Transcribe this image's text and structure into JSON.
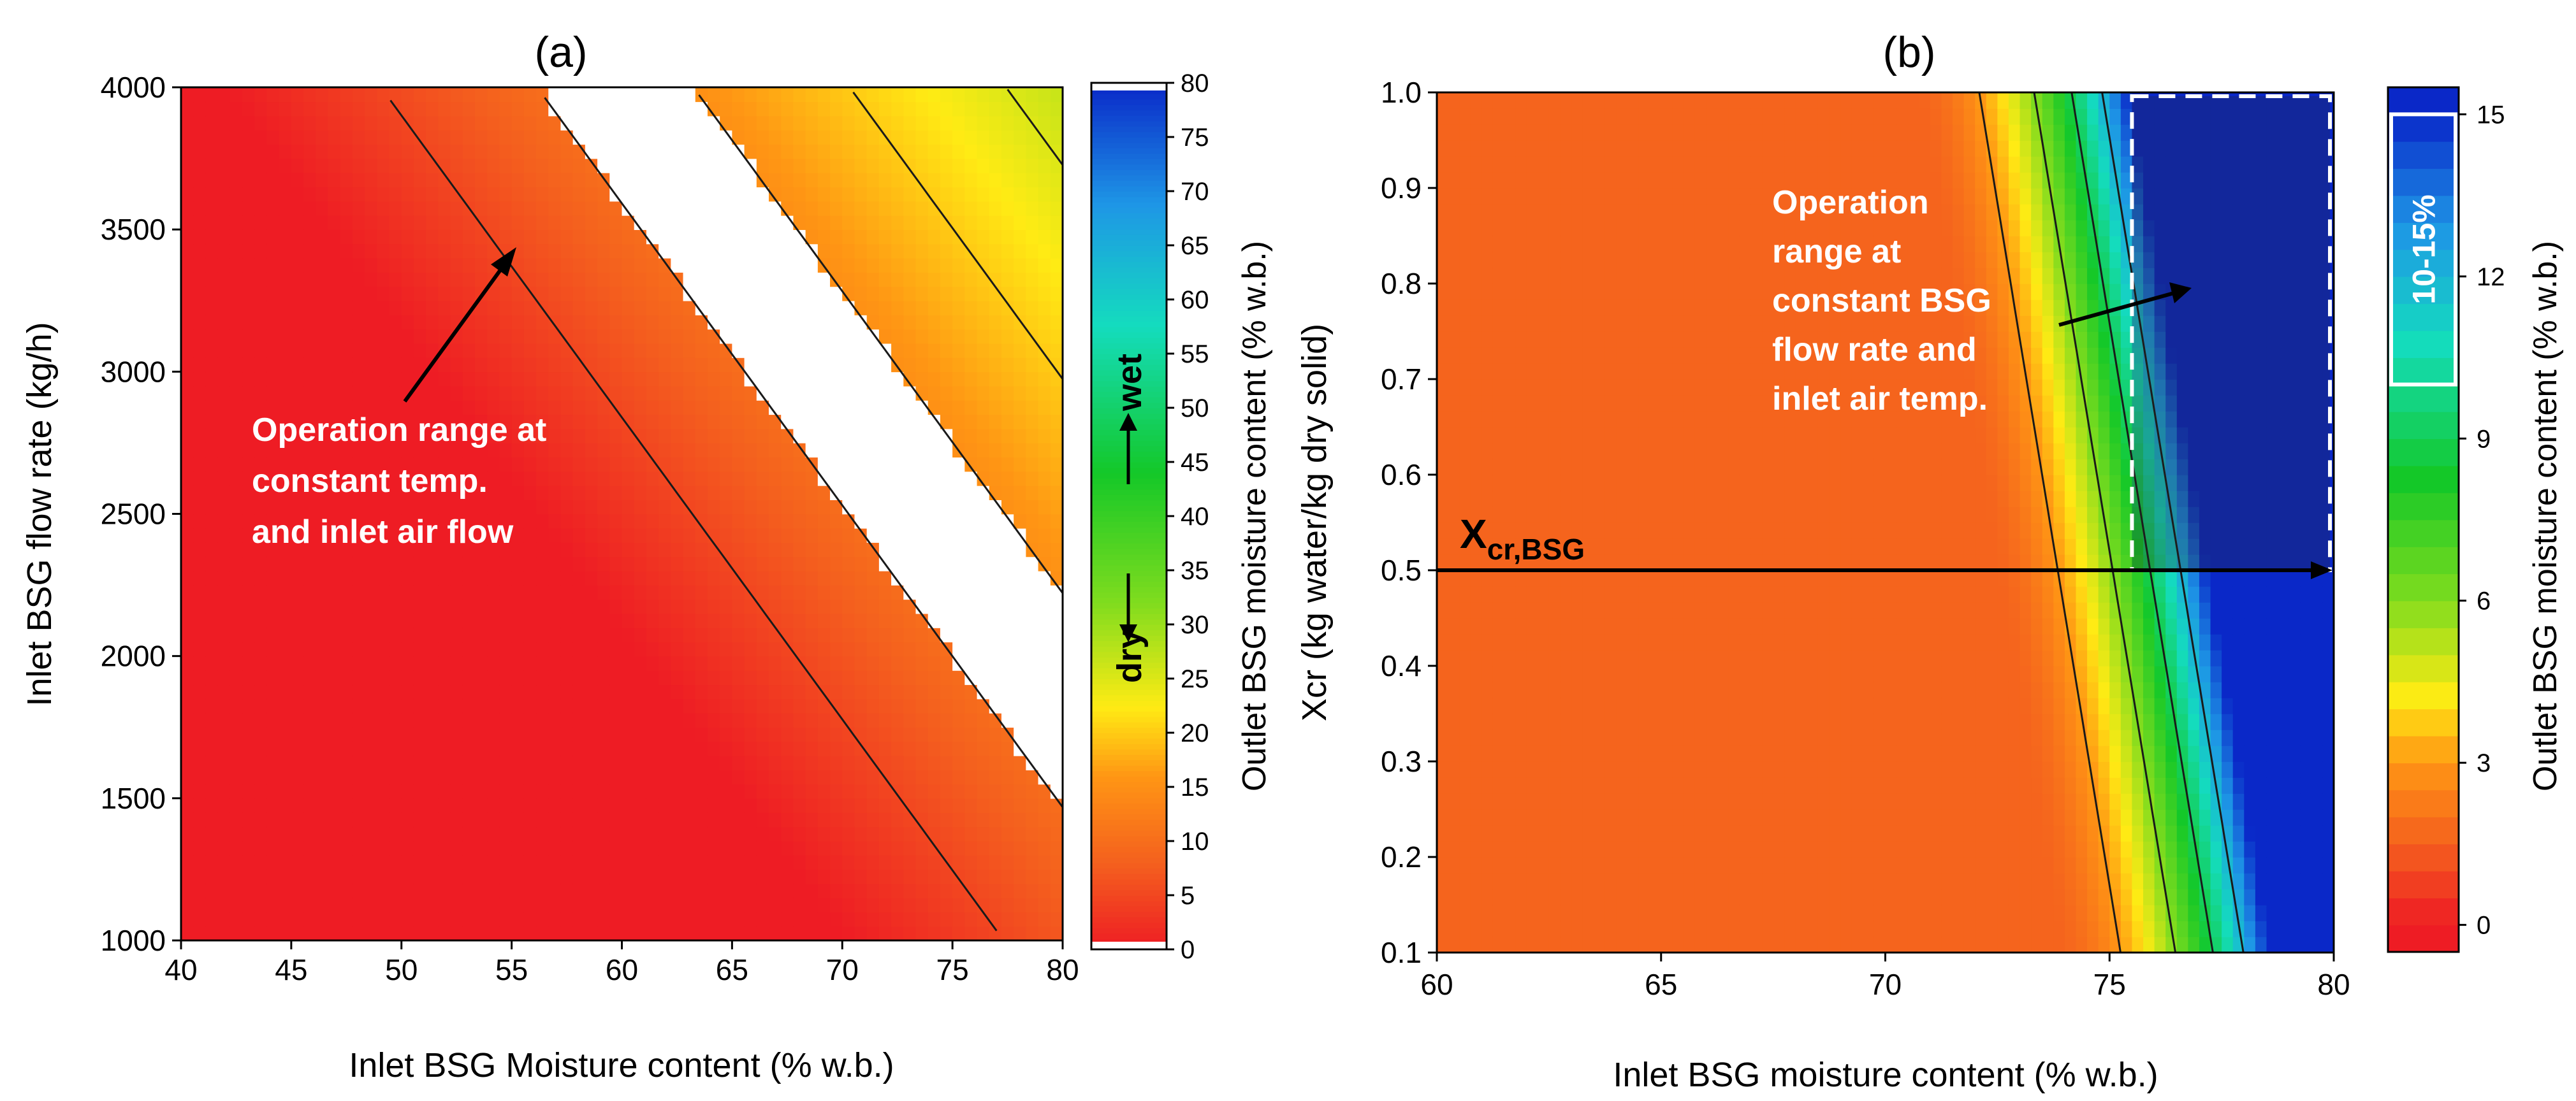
{
  "chart_data": [
    {
      "type": "heatmap",
      "panel_label": "(a)",
      "xlabel": "Inlet BSG Moisture content (% w.b.)",
      "ylabel": "Inlet BSG flow rate (kg/h)",
      "xlim": [
        40,
        80
      ],
      "ylim": [
        1000,
        4000
      ],
      "x_ticks": [
        "40",
        "45",
        "50",
        "55",
        "60",
        "65",
        "70",
        "75",
        "80"
      ],
      "y_ticks": [
        "1000",
        "1500",
        "2000",
        "2500",
        "3000",
        "3500",
        "4000"
      ],
      "colorbar": {
        "label": "Outlet BSG moisture content (% w.b.)",
        "range": [
          0,
          80
        ],
        "ticks": [
          "0",
          "5",
          "10",
          "15",
          "20",
          "25",
          "30",
          "35",
          "40",
          "45",
          "50",
          "55",
          "60",
          "65",
          "70",
          "75",
          "80"
        ],
        "dry_label": "dry",
        "wet_label": "wet"
      },
      "model": "outlet moisture rises with inlet moisture and flow rate; 10-15% band left uncolored (white)",
      "operation_band_percent": [
        10,
        15
      ],
      "contour_levels": [
        5,
        10,
        15,
        20,
        25,
        30,
        35,
        40,
        45,
        50,
        55,
        60,
        65,
        70
      ],
      "annotation": {
        "lines": [
          "Operation range at",
          "constant temp.",
          "and inlet air flow"
        ],
        "arrow_to": [
          55,
          3450
        ]
      }
    },
    {
      "type": "heatmap",
      "panel_label": "(b)",
      "xlabel": "Inlet BSG moisture content (% w.b.)",
      "ylabel": "Xcr (kg water/kg dry solid)",
      "xlim": [
        60,
        80
      ],
      "ylim": [
        0.1,
        1.0
      ],
      "x_ticks": [
        "60",
        "65",
        "70",
        "75",
        "80"
      ],
      "y_ticks": [
        "0.1",
        "0.2",
        "0.3",
        "0.4",
        "0.5",
        "0.6",
        "0.7",
        "0.8",
        "0.9",
        "1.0"
      ],
      "colorbar": {
        "label": "Outlet BSG moisture content (% w.b.)",
        "range": [
          0,
          15
        ],
        "ticks": [
          "0",
          "3",
          "6",
          "9",
          "12",
          "15"
        ],
        "highlight_range": [
          10,
          15
        ],
        "highlight_label": "10-15%"
      },
      "reference_line": {
        "y": 0.5,
        "label": "X",
        "label_sub": "cr,BSG"
      },
      "operation_box": {
        "x": [
          75.5,
          80
        ],
        "y": [
          0.5,
          1.0
        ]
      },
      "contour_levels": [
        3,
        6,
        9,
        12
      ],
      "annotation": {
        "lines": [
          "Operation",
          "range at",
          "constant BSG",
          "flow rate and",
          "inlet air temp."
        ],
        "arrow_to": [
          77.3,
          0.8
        ]
      }
    }
  ]
}
